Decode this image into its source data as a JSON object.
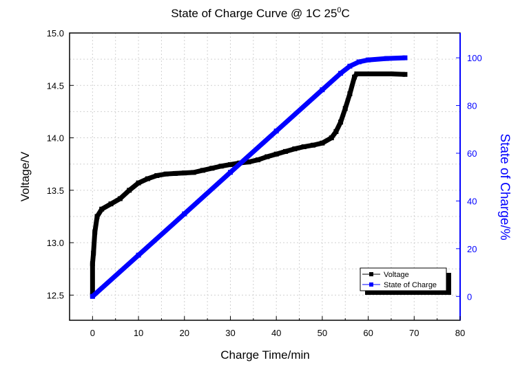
{
  "chart_data": {
    "type": "line",
    "title": "State of Charge Curve @ 1C  25",
    "title_superscript": "0",
    "title_suffix": "C",
    "xlabel": "Charge Time/min",
    "ylabel_left": "Voltage/V",
    "ylabel_right": "State of Charge/%",
    "xlim": [
      -5,
      80
    ],
    "ylim_left": [
      12.26,
      15.0
    ],
    "ylim_right": [
      -10,
      110.4
    ],
    "x_ticks": [
      0,
      10,
      20,
      30,
      40,
      50,
      60,
      70,
      80
    ],
    "y_ticks_left": [
      "12.5",
      "13.0",
      "13.5",
      "14.0",
      "14.5",
      "15.0"
    ],
    "y_ticks_right": [
      0,
      20,
      40,
      60,
      80,
      100
    ],
    "grid": true,
    "legend_position": "bottom-right",
    "colors": {
      "voltage": "#000000",
      "soc": "#0000ff",
      "right_axis": "#0000ff"
    },
    "series": [
      {
        "name": "Voltage",
        "axis": "left",
        "x": [
          0,
          0,
          0.2,
          0.5,
          1,
          2,
          4,
          6,
          8,
          10,
          12,
          14,
          16,
          18,
          20,
          22,
          24,
          26,
          28,
          30,
          32,
          34,
          36,
          38,
          40,
          42,
          44,
          46,
          48,
          50,
          52,
          53,
          54,
          55,
          56,
          57,
          57.5,
          60,
          65,
          68
        ],
        "y": [
          12.5,
          12.8,
          12.9,
          13.1,
          13.25,
          13.32,
          13.37,
          13.42,
          13.5,
          13.57,
          13.61,
          13.64,
          13.655,
          13.66,
          13.665,
          13.67,
          13.69,
          13.71,
          13.73,
          13.745,
          13.76,
          13.77,
          13.79,
          13.82,
          13.845,
          13.87,
          13.895,
          13.915,
          13.93,
          13.95,
          14.0,
          14.06,
          14.15,
          14.28,
          14.42,
          14.58,
          14.61,
          14.61,
          14.61,
          14.605
        ]
      },
      {
        "name": "State of Charge",
        "axis": "right",
        "x": [
          0,
          10,
          20,
          30,
          40,
          50,
          54,
          56,
          58,
          60,
          64,
          68
        ],
        "y": [
          0,
          17.3,
          34.6,
          52,
          69.3,
          86.6,
          93.5,
          96.5,
          98.3,
          99.1,
          99.7,
          100
        ]
      }
    ]
  }
}
